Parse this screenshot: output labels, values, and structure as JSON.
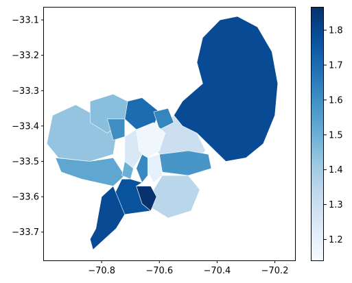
{
  "chart_data": {
    "type": "choropleth-map",
    "x_axis": {
      "range": [
        -71.0,
        -70.13
      ],
      "ticks": [
        {
          "label": "−70.8",
          "value": -70.8
        },
        {
          "label": "−70.6",
          "value": -70.6
        },
        {
          "label": "−70.4",
          "value": -70.4
        },
        {
          "label": "−70.2",
          "value": -70.2
        }
      ]
    },
    "y_axis": {
      "range": [
        -33.78,
        -33.065
      ],
      "ticks": [
        {
          "label": "−33.1",
          "value": -33.1
        },
        {
          "label": "−33.2",
          "value": -33.2
        },
        {
          "label": "−33.3",
          "value": -33.3
        },
        {
          "label": "−33.4",
          "value": -33.4
        },
        {
          "label": "−33.5",
          "value": -33.5
        },
        {
          "label": "−33.6",
          "value": -33.6
        },
        {
          "label": "−33.7",
          "value": -33.7
        }
      ]
    },
    "colorbar": {
      "colormap": "Blues",
      "range": [
        1.14,
        1.865
      ],
      "ticks": [
        {
          "label": "1.2",
          "value": 1.2
        },
        {
          "label": "1.3",
          "value": 1.3
        },
        {
          "label": "1.4",
          "value": 1.4
        },
        {
          "label": "1.5",
          "value": 1.5
        },
        {
          "label": "1.6",
          "value": 1.6
        },
        {
          "label": "1.7",
          "value": 1.7
        },
        {
          "label": "1.8",
          "value": 1.8
        }
      ]
    },
    "regions": [
      {
        "id": "northeast-large",
        "value": 1.79,
        "polygon": [
          [
            -70.45,
            -33.28
          ],
          [
            -70.47,
            -33.22
          ],
          [
            -70.45,
            -33.15
          ],
          [
            -70.39,
            -33.1
          ],
          [
            -70.33,
            -33.09
          ],
          [
            -70.26,
            -33.12
          ],
          [
            -70.21,
            -33.19
          ],
          [
            -70.19,
            -33.28
          ],
          [
            -70.2,
            -33.37
          ],
          [
            -70.24,
            -33.45
          ],
          [
            -70.3,
            -33.49
          ],
          [
            -70.37,
            -33.5
          ],
          [
            -70.42,
            -33.46
          ],
          [
            -70.47,
            -33.42
          ],
          [
            -70.52,
            -33.4
          ],
          [
            -70.55,
            -33.37
          ],
          [
            -70.52,
            -33.33
          ]
        ]
      },
      {
        "id": "east-middle",
        "value": 1.3,
        "polygon": [
          [
            -70.6,
            -33.41
          ],
          [
            -70.55,
            -33.37
          ],
          [
            -70.52,
            -33.4
          ],
          [
            -70.47,
            -33.42
          ],
          [
            -70.44,
            -33.47
          ],
          [
            -70.49,
            -33.51
          ],
          [
            -70.58,
            -33.5
          ],
          [
            -70.62,
            -33.46
          ]
        ]
      },
      {
        "id": "east-stripe",
        "value": 1.58,
        "polygon": [
          [
            -70.6,
            -33.48
          ],
          [
            -70.5,
            -33.47
          ],
          [
            -70.43,
            -33.48
          ],
          [
            -70.42,
            -33.52
          ],
          [
            -70.5,
            -33.54
          ],
          [
            -70.59,
            -33.53
          ]
        ]
      },
      {
        "id": "southeast",
        "value": 1.35,
        "polygon": [
          [
            -70.59,
            -33.54
          ],
          [
            -70.5,
            -33.54
          ],
          [
            -70.46,
            -33.58
          ],
          [
            -70.49,
            -33.64
          ],
          [
            -70.57,
            -33.66
          ],
          [
            -70.63,
            -33.63
          ],
          [
            -70.62,
            -33.58
          ]
        ]
      },
      {
        "id": "north-dark",
        "value": 1.7,
        "polygon": [
          [
            -70.71,
            -33.33
          ],
          [
            -70.66,
            -33.32
          ],
          [
            -70.6,
            -33.36
          ],
          [
            -70.62,
            -33.4
          ],
          [
            -70.68,
            -33.41
          ],
          [
            -70.72,
            -33.38
          ]
        ]
      },
      {
        "id": "north-center",
        "value": 1.63,
        "polygon": [
          [
            -70.62,
            -33.36
          ],
          [
            -70.57,
            -33.35
          ],
          [
            -70.55,
            -33.39
          ],
          [
            -70.6,
            -33.41
          ]
        ]
      },
      {
        "id": "west-large",
        "value": 1.43,
        "polygon": [
          [
            -70.97,
            -33.37
          ],
          [
            -70.89,
            -33.34
          ],
          [
            -70.8,
            -33.38
          ],
          [
            -70.75,
            -33.43
          ],
          [
            -70.76,
            -33.48
          ],
          [
            -70.84,
            -33.5
          ],
          [
            -70.95,
            -33.49
          ],
          [
            -70.99,
            -33.45
          ]
        ]
      },
      {
        "id": "northwest",
        "value": 1.45,
        "polygon": [
          [
            -70.84,
            -33.33
          ],
          [
            -70.76,
            -33.31
          ],
          [
            -70.71,
            -33.33
          ],
          [
            -70.72,
            -33.38
          ],
          [
            -70.78,
            -33.42
          ],
          [
            -70.84,
            -33.39
          ]
        ]
      },
      {
        "id": "southwest",
        "value": 1.53,
        "polygon": [
          [
            -70.96,
            -33.49
          ],
          [
            -70.84,
            -33.5
          ],
          [
            -70.76,
            -33.49
          ],
          [
            -70.72,
            -33.54
          ],
          [
            -70.76,
            -33.57
          ],
          [
            -70.87,
            -33.55
          ],
          [
            -70.94,
            -33.53
          ]
        ]
      },
      {
        "id": "west-inner",
        "value": 1.6,
        "polygon": [
          [
            -70.78,
            -33.38
          ],
          [
            -70.72,
            -33.38
          ],
          [
            -70.72,
            -33.43
          ],
          [
            -70.76,
            -33.44
          ]
        ]
      },
      {
        "id": "center-small",
        "value": 1.25,
        "polygon": [
          [
            -70.72,
            -33.43
          ],
          [
            -70.68,
            -33.41
          ],
          [
            -70.66,
            -33.48
          ],
          [
            -70.69,
            -33.52
          ],
          [
            -70.72,
            -33.5
          ]
        ]
      },
      {
        "id": "center-light",
        "value": 1.17,
        "polygon": [
          [
            -70.68,
            -33.41
          ],
          [
            -70.62,
            -33.39
          ],
          [
            -70.58,
            -33.42
          ],
          [
            -70.6,
            -33.47
          ],
          [
            -70.64,
            -33.49
          ],
          [
            -70.67,
            -33.47
          ]
        ]
      },
      {
        "id": "center-south-strip",
        "value": 1.2,
        "polygon": [
          [
            -70.64,
            -33.49
          ],
          [
            -70.6,
            -33.48
          ],
          [
            -70.59,
            -33.54
          ],
          [
            -70.62,
            -33.56
          ],
          [
            -70.64,
            -33.53
          ]
        ]
      },
      {
        "id": "center-blue",
        "value": 1.62,
        "polygon": [
          [
            -70.66,
            -33.48
          ],
          [
            -70.64,
            -33.49
          ],
          [
            -70.64,
            -33.54
          ],
          [
            -70.66,
            -33.56
          ],
          [
            -70.68,
            -33.52
          ]
        ]
      },
      {
        "id": "center-west-mid",
        "value": 1.5,
        "polygon": [
          [
            -70.72,
            -33.5
          ],
          [
            -70.69,
            -33.52
          ],
          [
            -70.7,
            -33.55
          ],
          [
            -70.73,
            -33.54
          ]
        ]
      },
      {
        "id": "south-dark",
        "value": 1.86,
        "polygon": [
          [
            -70.68,
            -33.57
          ],
          [
            -70.63,
            -33.57
          ],
          [
            -70.61,
            -33.6
          ],
          [
            -70.63,
            -33.64
          ],
          [
            -70.66,
            -33.62
          ]
        ]
      },
      {
        "id": "south-mid",
        "value": 1.77,
        "polygon": [
          [
            -70.7,
            -33.55
          ],
          [
            -70.66,
            -33.56
          ],
          [
            -70.68,
            -33.57
          ],
          [
            -70.66,
            -33.62
          ],
          [
            -70.63,
            -33.64
          ],
          [
            -70.72,
            -33.65
          ],
          [
            -70.76,
            -33.6
          ],
          [
            -70.73,
            -33.55
          ]
        ]
      },
      {
        "id": "south-long",
        "value": 1.79,
        "polygon": [
          [
            -70.76,
            -33.57
          ],
          [
            -70.72,
            -33.65
          ],
          [
            -70.75,
            -33.69
          ],
          [
            -70.79,
            -33.72
          ],
          [
            -70.83,
            -33.75
          ],
          [
            -70.84,
            -33.72
          ],
          [
            -70.82,
            -33.69
          ],
          [
            -70.8,
            -33.6
          ]
        ]
      }
    ]
  }
}
